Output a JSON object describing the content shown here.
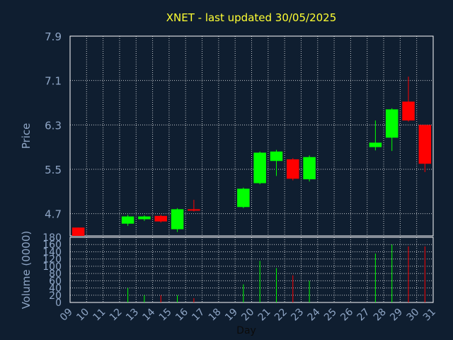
{
  "chart_data": {
    "type": "candlestick",
    "title": "XNET - last updated 30/05/2025",
    "ylabel_price": "Price",
    "ylabel_volume": "Volume (0000)",
    "xlabel": "Day",
    "price_ylim": [
      4.3,
      7.9
    ],
    "price_ticks": [
      "7.9",
      "7.1",
      "6.3",
      "5.5",
      "4.7"
    ],
    "price_tick_values": [
      7.9,
      7.1,
      6.3,
      5.5,
      4.7
    ],
    "volume_ylim": [
      0,
      180
    ],
    "volume_ticks": [
      "180",
      "160",
      "140",
      "120",
      "100",
      "80",
      "60",
      "40",
      "20",
      "0"
    ],
    "volume_tick_values": [
      180,
      160,
      140,
      120,
      100,
      80,
      60,
      40,
      20,
      0
    ],
    "x_ticks": [
      "09",
      "10",
      "11",
      "12",
      "13",
      "14",
      "15",
      "16",
      "17",
      "18",
      "19",
      "20",
      "21",
      "22",
      "23",
      "24",
      "25",
      "26",
      "27",
      "28",
      "29",
      "30",
      "31"
    ],
    "up_color": "#00ff00",
    "down_color": "#ff0000",
    "candles": [
      {
        "day": 9,
        "open": 4.45,
        "close": 4.3,
        "high": 4.45,
        "low": 4.3,
        "volume": 0
      },
      {
        "day": 12,
        "open": 4.52,
        "close": 4.65,
        "high": 4.68,
        "low": 4.48,
        "volume": 40
      },
      {
        "day": 13,
        "open": 4.6,
        "close": 4.65,
        "high": 4.67,
        "low": 4.57,
        "volume": 20
      },
      {
        "day": 14,
        "open": 4.66,
        "close": 4.56,
        "high": 4.68,
        "low": 4.54,
        "volume": 20
      },
      {
        "day": 15,
        "open": 4.42,
        "close": 4.78,
        "high": 4.8,
        "low": 4.37,
        "volume": 20
      },
      {
        "day": 16,
        "open": 4.78,
        "close": 4.76,
        "high": 4.95,
        "low": 4.74,
        "volume": 12
      },
      {
        "day": 19,
        "open": 4.82,
        "close": 5.15,
        "high": 5.17,
        "low": 4.8,
        "volume": 50
      },
      {
        "day": 20,
        "open": 5.25,
        "close": 5.8,
        "high": 5.82,
        "low": 5.23,
        "volume": 115
      },
      {
        "day": 21,
        "open": 5.65,
        "close": 5.82,
        "high": 5.85,
        "low": 5.38,
        "volume": 95
      },
      {
        "day": 22,
        "open": 5.68,
        "close": 5.33,
        "high": 5.7,
        "low": 5.3,
        "volume": 75
      },
      {
        "day": 23,
        "open": 5.32,
        "close": 5.72,
        "high": 5.75,
        "low": 5.28,
        "volume": 60
      },
      {
        "day": 27,
        "open": 5.9,
        "close": 5.98,
        "high": 6.38,
        "low": 5.84,
        "volume": 135
      },
      {
        "day": 28,
        "open": 6.07,
        "close": 6.58,
        "high": 6.6,
        "low": 5.83,
        "volume": 160
      },
      {
        "day": 29,
        "open": 6.72,
        "close": 6.38,
        "high": 7.17,
        "low": 6.36,
        "volume": 155
      },
      {
        "day": 30,
        "open": 6.3,
        "close": 5.6,
        "high": 6.3,
        "low": 5.45,
        "volume": 155
      }
    ]
  }
}
